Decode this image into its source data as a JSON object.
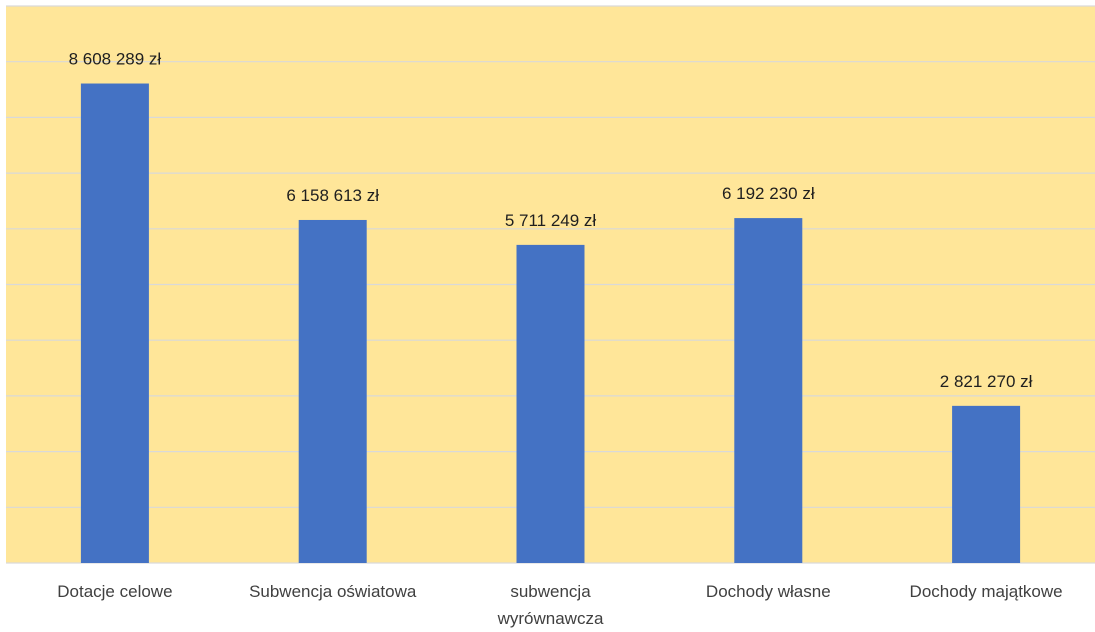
{
  "chart_data": {
    "type": "bar",
    "categories": [
      [
        "Dotacje celowe"
      ],
      [
        "Subwencja oświatowa"
      ],
      [
        "subwencja",
        "wyrównawcza"
      ],
      [
        "Dochody własne"
      ],
      [
        "Dochody majątkowe"
      ]
    ],
    "values": [
      8608289,
      6158613,
      5711249,
      6192230,
      2821270
    ],
    "value_labels": [
      "8 608 289 zł",
      "6 158 613 zł",
      "5 711 249 zł",
      "6 192 230 zł",
      "2 821 270 zł"
    ],
    "ylim": [
      0,
      10000000
    ],
    "grid": true,
    "colors": {
      "plot_background": "#ffe699",
      "bar": "#4472c4",
      "gridline": "#d9d9d9"
    }
  }
}
